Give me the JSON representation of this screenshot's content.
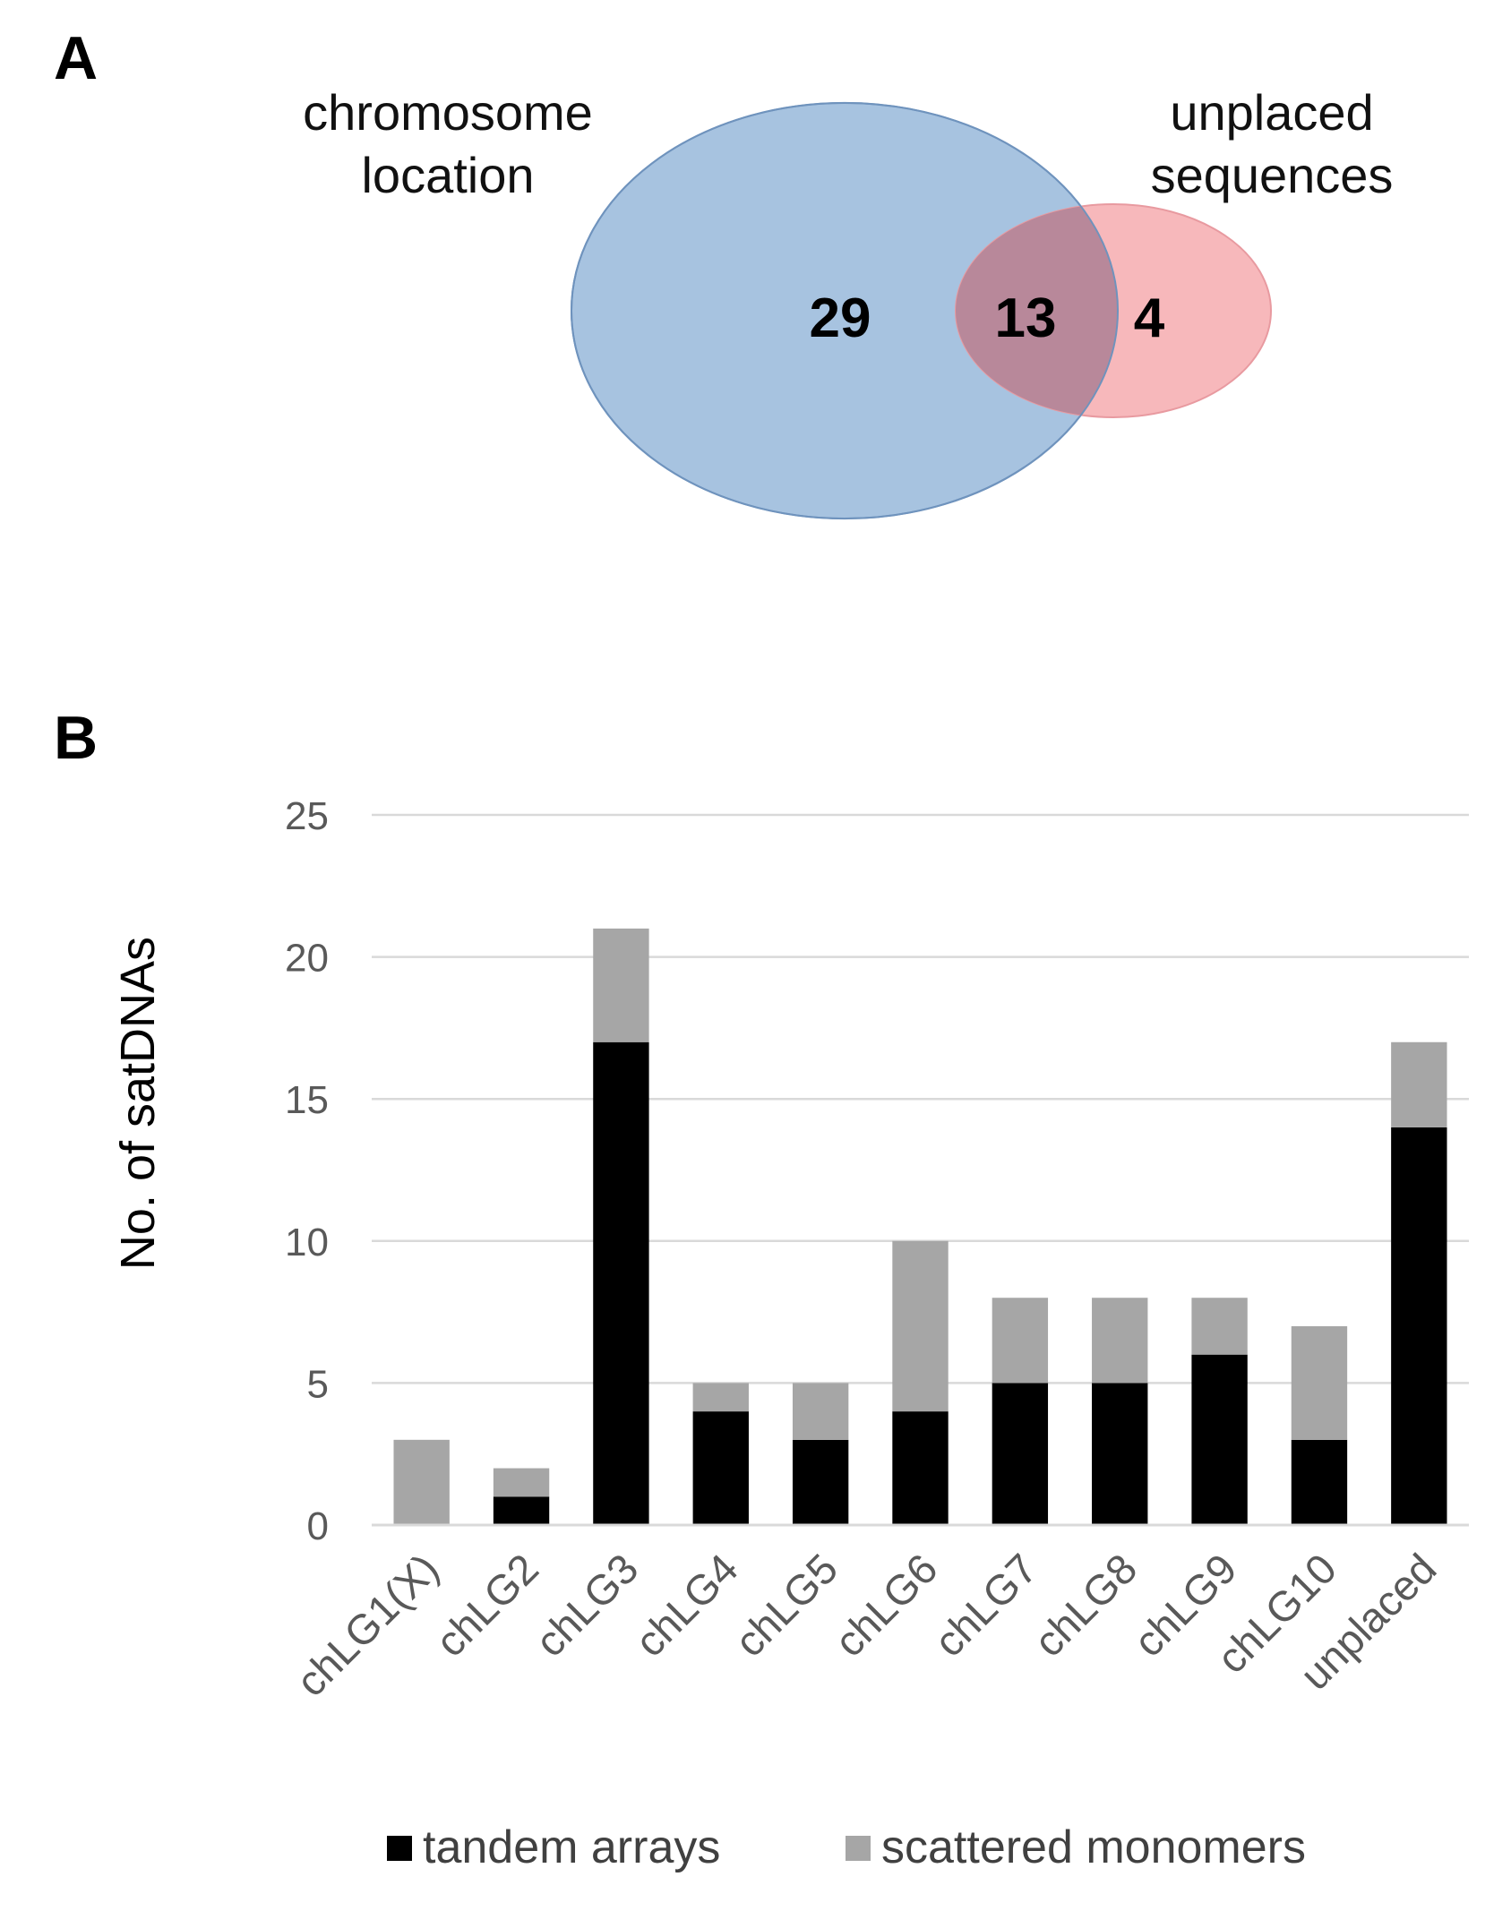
{
  "panels": {
    "a": {
      "letter": "A"
    },
    "b": {
      "letter": "B"
    }
  },
  "venn": {
    "left_set": {
      "label_lines": [
        "chromosome",
        "location"
      ],
      "only_count": "29",
      "color": "#a7c3e0",
      "stroke": "#6f93bd"
    },
    "right_set": {
      "label_lines": [
        "unplaced",
        "sequences"
      ],
      "only_count": "4",
      "color": "#f7b8bb",
      "stroke": "#e89aa0"
    },
    "overlap_count": "13",
    "overlap_color": "#b8889a"
  },
  "chart_data": {
    "type": "bar",
    "stacked": true,
    "ylabel": "No. of satDNAs",
    "ylim": [
      0,
      25
    ],
    "yticks": [
      0,
      5,
      10,
      15,
      20,
      25
    ],
    "grid": true,
    "legend_position": "bottom",
    "categories": [
      "chLG1(X)",
      "chLG2",
      "chLG3",
      "chLG4",
      "chLG5",
      "chLG6",
      "chLG7",
      "chLG8",
      "chLG9",
      "chLG10",
      "unplaced"
    ],
    "series": [
      {
        "name": "tandem arrays",
        "color": "#000000",
        "values": [
          0,
          1,
          17,
          4,
          3,
          4,
          5,
          5,
          6,
          3,
          14
        ]
      },
      {
        "name": "scattered monomers",
        "color": "#a6a6a6",
        "values": [
          3,
          1,
          4,
          1,
          2,
          6,
          3,
          3,
          2,
          4,
          3
        ]
      }
    ]
  }
}
